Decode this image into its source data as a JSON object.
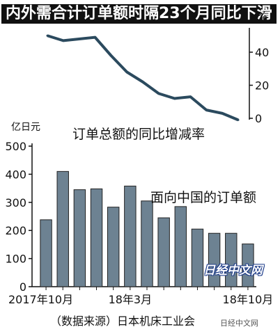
{
  "headline": "内外需合计订单额时隔23个月同比下滑",
  "source": "（数据来源）日本机床工业会",
  "watermark": "日经中文网",
  "corner_mark": "日经中文网",
  "chart_data": [
    {
      "type": "line",
      "title": "订单总额的同比增减率",
      "ylabel": "%",
      "ylim": [
        0,
        55
      ],
      "yticks": [
        0,
        20,
        40
      ],
      "x": [
        "2017-10",
        "2017-11",
        "2017-12",
        "2018-01",
        "2018-02",
        "2018-03",
        "2018-04",
        "2018-05",
        "2018-06",
        "2018-07",
        "2018-08",
        "2018-09",
        "2018-10"
      ],
      "series": [
        {
          "values": [
            50,
            47,
            48,
            49,
            38,
            28,
            22,
            15,
            12,
            13,
            5,
            3,
            -1
          ]
        }
      ],
      "color": "#2b4a5e"
    },
    {
      "type": "bar",
      "title": "面向中国的订单额",
      "ylabel": "亿日元",
      "ylim": [
        0,
        500
      ],
      "yticks": [
        0,
        100,
        200,
        300,
        400,
        500
      ],
      "categories": [
        "2017-10",
        "2017-11",
        "2017-12",
        "2018-01",
        "2018-02",
        "2018-03",
        "2018-04",
        "2018-05",
        "2018-06",
        "2018-07",
        "2018-08",
        "2018-09",
        "2018-10"
      ],
      "xtick_labels": [
        "2017年10月",
        "18年3月",
        "18年10月"
      ],
      "values": [
        238,
        410,
        345,
        348,
        283,
        358,
        305,
        245,
        285,
        205,
        190,
        190,
        152
      ],
      "color": "#6d8292"
    }
  ]
}
